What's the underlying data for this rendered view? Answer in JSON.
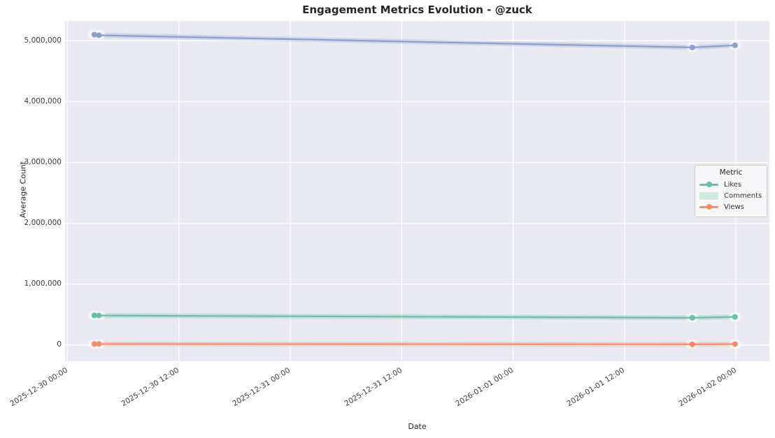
{
  "figure": {
    "title": "Engagement Metrics Evolution - @zuck"
  },
  "chart_data": {
    "type": "line",
    "title": "Engagement Metrics Evolution - @zuck",
    "xlabel": "Date",
    "ylabel": "Average Count",
    "grid": true,
    "plot_background": "#eaeaf2",
    "gridline_color": "#ffffff",
    "x_tick_labels": [
      "2025-12-30 00:00",
      "2025-12-30 12:00",
      "2025-12-31 00:00",
      "2025-12-31 12:00",
      "2026-01-01 00:00",
      "2026-01-01 12:00",
      "2026-01-02 00:00"
    ],
    "x_tick_hours": [
      0,
      12,
      24,
      36,
      48,
      60,
      72
    ],
    "xlim_hours": [
      -0.25,
      75.6
    ],
    "y_tick_labels": [
      "0",
      "1,000,000",
      "2,000,000",
      "3,000,000",
      "4,000,000",
      "5,000,000"
    ],
    "y_tick_values": [
      0,
      1000000,
      2000000,
      3000000,
      4000000,
      5000000
    ],
    "ylim": [
      -265000,
      5325000
    ],
    "x_estimated_timestamps": [
      "2025-12-30 02:50",
      "2025-12-30 03:20",
      "2026-01-01 19:15",
      "2026-01-02 00:00"
    ],
    "series": [
      {
        "name": "Likes",
        "color": "#66c2a5",
        "x_hours": [
          2.9,
          3.4,
          67.3,
          71.9
        ],
        "values": [
          487000,
          485000,
          448000,
          462000
        ]
      },
      {
        "name": "Comments",
        "color": "#8da0cb",
        "x_hours": [
          2.9,
          3.4,
          67.3,
          71.9
        ],
        "values": [
          5100000,
          5090000,
          4890000,
          4925000
        ]
      },
      {
        "name": "Views",
        "color": "#fc8d62",
        "x_hours": [
          2.9,
          3.4,
          67.3,
          71.9
        ],
        "values": [
          17000,
          17000,
          12000,
          15000
        ]
      }
    ],
    "legend": {
      "title": "Metric",
      "position": "center-right",
      "entries": [
        {
          "label": "Likes",
          "swatch": "line-marker",
          "color": "#66c2a5"
        },
        {
          "label": "Comments",
          "swatch": "patch",
          "color": "#cfe9de"
        },
        {
          "label": "Views",
          "swatch": "line-marker",
          "color": "#fc8d62"
        }
      ],
      "note": "Legend shows Comments as a pale filled patch; the top purple line (#8da0cb) has no matching line-style legend entry."
    }
  }
}
